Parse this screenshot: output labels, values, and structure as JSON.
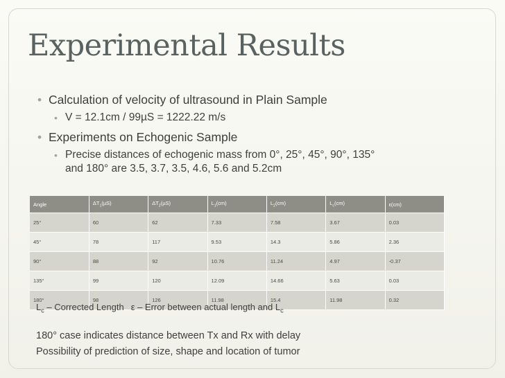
{
  "title": "Experimental Results",
  "bullets": {
    "b1": "Calculation of velocity of ultrasound in Plain Sample",
    "b1_sub": "V = 12.1cm / 99µS = 1222.22 m/s",
    "b2": "Experiments on Echogenic Sample",
    "b2_sub_line1": "Precise distances of echogenic mass from 0°, 25°, 45°, 90°, 135°",
    "b2_sub_line2": "and 180° are  3.5, 3.7, 3.5, 4.6, 5.6 and 5.2cm"
  },
  "table": {
    "headers": [
      {
        "main": "Angle",
        "sub": ""
      },
      {
        "main": "ΔT",
        "sub": "1",
        "suffix": "(µS)"
      },
      {
        "main": "ΔT",
        "sub": "2",
        "suffix": "(µS)"
      },
      {
        "main": "L",
        "sub": "1",
        "suffix": "(cm)"
      },
      {
        "main": "L",
        "sub": "2",
        "suffix": "(cm)"
      },
      {
        "main": "L",
        "sub": "c",
        "suffix": "(cm)"
      },
      {
        "main": "ε",
        "sub": "",
        "suffix": "(cm)"
      }
    ],
    "rows": [
      [
        "25°",
        "60",
        "62",
        "7.33",
        "7.58",
        "3.67",
        "0.03"
      ],
      [
        "45°",
        "78",
        "117",
        "9.53",
        "14.3",
        "5.86",
        "2.36"
      ],
      [
        "90°",
        "88",
        "92",
        "10.76",
        "11.24",
        "4.97",
        "-0.37"
      ],
      [
        "135°",
        "99",
        "120",
        "12.09",
        "14.66",
        "5.63",
        "0.03"
      ],
      [
        "180°",
        "98",
        "126",
        "11.98",
        "15.4",
        "11.98",
        "0.32"
      ]
    ]
  },
  "legend": {
    "lc_main": "L",
    "lc_sub": "c",
    "lc_text": " – Corrected Length",
    "eps_text": "ε – Error between actual length and L",
    "eps_sub": "c"
  },
  "notes": [
    "180° case indicates distance between Tx and Rx with delay",
    "Possibility of prediction of size, shape and location of tumor"
  ],
  "colors": {
    "title": "#5a6161",
    "header_bg": "#8e8e86",
    "row_odd": "#d5d5cd",
    "row_even": "#ebebe5",
    "bullet": "#9aa6a4"
  }
}
